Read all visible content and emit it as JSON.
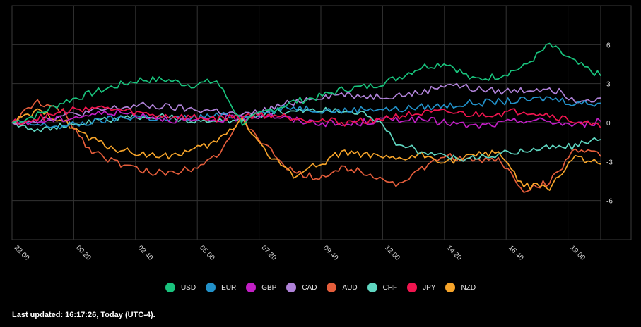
{
  "chart_data": {
    "type": "line",
    "x_ticks": [
      "22:00",
      "00:20",
      "02:40",
      "05:00",
      "07:20",
      "09:40",
      "12:00",
      "14:20",
      "16:40",
      "19:00"
    ],
    "y_ticks": [
      "6",
      "3",
      "0",
      "-3",
      "-6"
    ],
    "ylim": [
      -9,
      9
    ],
    "grid": true,
    "legend_position": "bottom",
    "x_hours": [
      0,
      1,
      2,
      3,
      4,
      5,
      6,
      7,
      8,
      9,
      10,
      11,
      12,
      13,
      14,
      15,
      16,
      17,
      18,
      19,
      20,
      21,
      22,
      23
    ],
    "series": [
      {
        "name": "USD",
        "color": "#19c37d",
        "values": [
          0.0,
          0.6,
          1.6,
          2.2,
          2.8,
          3.3,
          3.3,
          2.9,
          3.2,
          0.0,
          0.9,
          1.6,
          2.0,
          2.6,
          2.8,
          3.4,
          4.3,
          4.6,
          3.3,
          3.6,
          4.3,
          6.0,
          4.6,
          3.6
        ]
      },
      {
        "name": "EUR",
        "color": "#2291c9",
        "values": [
          0.0,
          -0.2,
          -0.3,
          0.0,
          0.3,
          0.5,
          0.2,
          0.4,
          0.5,
          0.6,
          0.8,
          1.2,
          1.0,
          0.9,
          1.1,
          1.0,
          1.2,
          1.3,
          1.5,
          1.6,
          1.7,
          1.9,
          1.5,
          1.5
        ]
      },
      {
        "name": "GBP",
        "color": "#c21fc5",
        "values": [
          0.0,
          0.1,
          0.3,
          0.6,
          0.8,
          0.6,
          0.3,
          0.1,
          0.2,
          0.4,
          0.6,
          0.2,
          0.0,
          -0.2,
          0.1,
          0.3,
          0.2,
          0.0,
          -0.3,
          -0.1,
          0.2,
          0.1,
          -0.2,
          0.1
        ]
      },
      {
        "name": "CAD",
        "color": "#b082d8",
        "values": [
          0.0,
          0.2,
          0.5,
          0.8,
          1.1,
          1.3,
          1.2,
          1.0,
          0.9,
          0.5,
          1.0,
          1.6,
          2.0,
          2.2,
          2.0,
          2.1,
          2.3,
          3.0,
          2.6,
          2.4,
          2.5,
          2.7,
          1.8,
          1.9
        ]
      },
      {
        "name": "AUD",
        "color": "#e45d3b",
        "values": [
          0.0,
          1.6,
          0.8,
          -2.0,
          -3.0,
          -3.7,
          -3.9,
          -3.5,
          -2.5,
          0.2,
          -2.0,
          -3.9,
          -4.2,
          -3.5,
          -3.9,
          -4.8,
          -3.6,
          -2.5,
          -3.0,
          -2.8,
          -5.2,
          -4.6,
          -2.0,
          -2.6
        ]
      },
      {
        "name": "CHF",
        "color": "#5fd6c0",
        "values": [
          0.0,
          -0.5,
          -0.3,
          0.0,
          0.3,
          0.5,
          0.4,
          0.2,
          0.0,
          0.3,
          0.8,
          0.9,
          1.0,
          0.9,
          0.7,
          -1.5,
          -2.3,
          -2.6,
          -2.8,
          -2.5,
          -2.1,
          -1.9,
          -1.8,
          -1.3
        ]
      },
      {
        "name": "JPY",
        "color": "#f0154f",
        "values": [
          0.0,
          0.3,
          0.8,
          1.2,
          1.0,
          0.7,
          0.5,
          0.4,
          0.3,
          0.5,
          0.6,
          0.4,
          0.2,
          0.0,
          0.2,
          0.5,
          0.7,
          0.8,
          0.6,
          0.7,
          0.9,
          0.6,
          0.1,
          -0.4
        ]
      },
      {
        "name": "NZD",
        "color": "#f6a42a",
        "values": [
          0.0,
          0.8,
          0.2,
          -1.2,
          -2.0,
          -2.4,
          -2.6,
          -2.2,
          -1.5,
          0.3,
          -2.5,
          -4.0,
          -3.2,
          -2.2,
          -2.6,
          -2.9,
          -2.5,
          -3.0,
          -2.6,
          -2.2,
          -4.9,
          -5.0,
          -2.6,
          -3.2
        ]
      }
    ]
  },
  "footer": {
    "last_updated": "Last updated: 16:17:26, Today (UTC-4)."
  }
}
